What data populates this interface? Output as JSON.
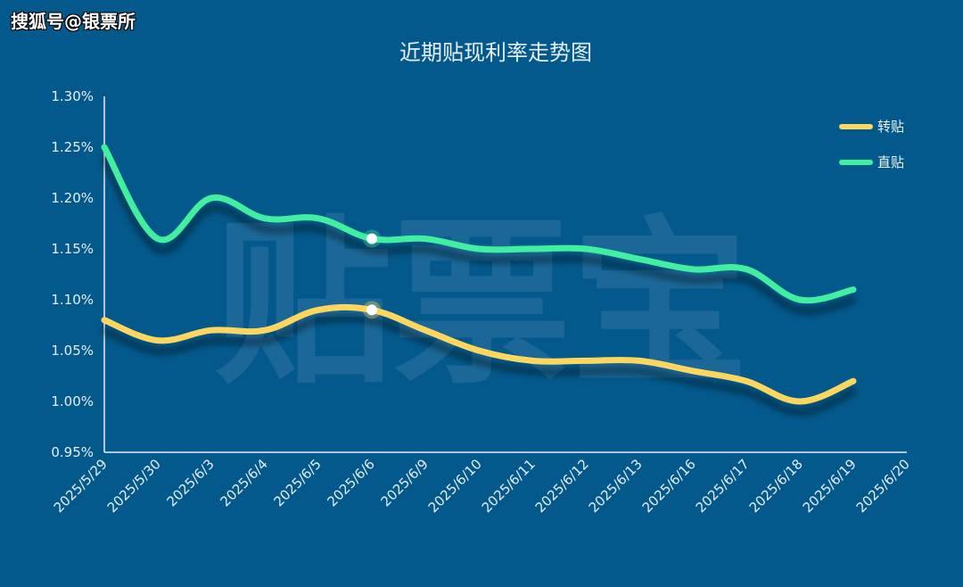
{
  "source_label": "搜狐号@银票所",
  "colors": {
    "background": "#03598b",
    "axis": "#e6eef5",
    "series_zhuantie": "#fdd65e",
    "series_zhitie": "#3ff0a0",
    "watermark": "#2f76a3"
  },
  "chart_data": {
    "type": "line",
    "title": "近期贴现利率走势图",
    "watermark": "贴票宝",
    "x": [
      "2025/5/29",
      "2025/5/30",
      "2025/6/3",
      "2025/6/4",
      "2025/6/5",
      "2025/6/6",
      "2025/6/9",
      "2025/6/10",
      "2025/6/11",
      "2025/6/12",
      "2025/6/13",
      "2025/6/16",
      "2025/6/17",
      "2025/6/18",
      "2025/6/19",
      "2025/6/20"
    ],
    "yticks": [
      "0.95%",
      "1.00%",
      "1.05%",
      "1.10%",
      "1.15%",
      "1.20%",
      "1.25%",
      "1.30%"
    ],
    "ylim": [
      0.95,
      1.3
    ],
    "series": [
      {
        "name": "转贴",
        "color": "#fdd65e",
        "values": [
          1.08,
          1.06,
          1.07,
          1.07,
          1.09,
          1.09,
          1.07,
          1.05,
          1.04,
          1.04,
          1.04,
          1.03,
          1.02,
          1.0,
          1.02,
          null
        ]
      },
      {
        "name": "直贴",
        "color": "#3ff0a0",
        "values": [
          1.25,
          1.16,
          1.2,
          1.18,
          1.18,
          1.16,
          1.16,
          1.15,
          1.15,
          1.15,
          1.14,
          1.13,
          1.13,
          1.1,
          1.11,
          null
        ]
      }
    ],
    "highlight_index": 5,
    "legend_position": "top-right",
    "grid": false
  }
}
